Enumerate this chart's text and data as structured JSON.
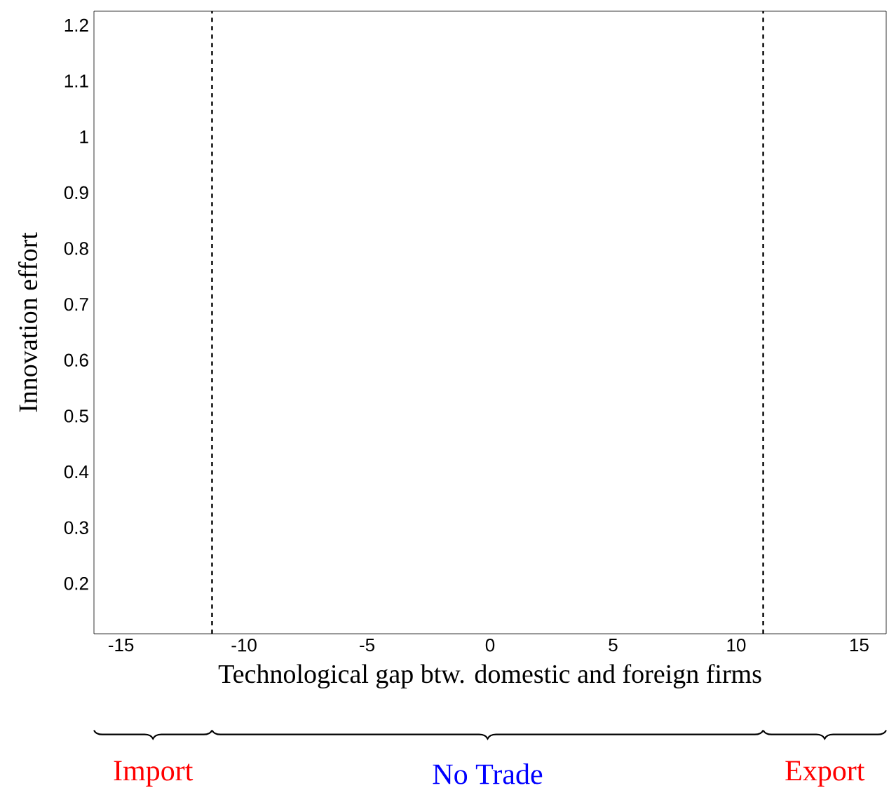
{
  "chart_data": {
    "type": "line",
    "xlabel": "Technological gap btw. domestic and foreign firms",
    "ylabel": "Innovation effort",
    "xlim": [
      -16.1,
      16.1
    ],
    "xticks": [
      -15,
      -10,
      -5,
      0,
      5,
      10,
      15
    ],
    "ylim": [
      0.11,
      1.225
    ],
    "yticks": [
      0.2,
      0.3,
      0.4,
      0.5,
      0.6,
      0.7,
      0.8,
      0.9,
      1,
      1.1,
      1.2
    ],
    "ref_lines": [
      {
        "axis": "x",
        "value": -11.3,
        "color": "#000000",
        "line_style": "dashed"
      },
      {
        "axis": "x",
        "value": 11.1,
        "color": "#000000",
        "line_style": "dashed"
      }
    ],
    "annotations": [
      "Import",
      "No Trade",
      "Export"
    ],
    "grid": false,
    "legend": false
  }
}
